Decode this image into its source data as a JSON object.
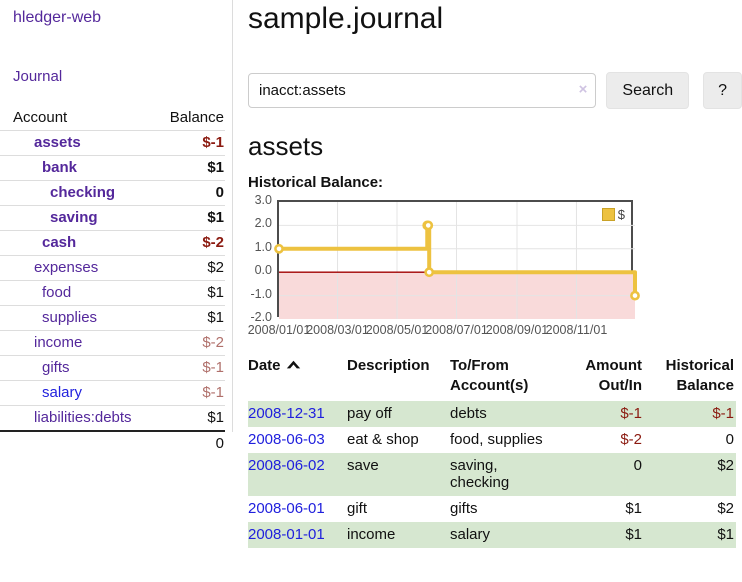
{
  "sidebar": {
    "app_title": "hledger-web",
    "nav": {
      "journal_label": "Journal"
    },
    "accounts_table": {
      "col_account": "Account",
      "col_balance": "Balance",
      "rows": [
        {
          "name": "assets",
          "indent": 1,
          "bold": true,
          "balance": "$-1",
          "balance_style": "neg-strong",
          "link_color": "purple"
        },
        {
          "name": "bank",
          "indent": 2,
          "bold": true,
          "balance": "$1",
          "balance_style": "pos",
          "link_color": "purple"
        },
        {
          "name": "checking",
          "indent": 3,
          "bold": true,
          "balance": "0",
          "balance_style": "pos",
          "link_color": "purple"
        },
        {
          "name": "saving",
          "indent": 3,
          "bold": true,
          "balance": "$1",
          "balance_style": "pos",
          "link_color": "purple"
        },
        {
          "name": "cash",
          "indent": 2,
          "bold": true,
          "balance": "$-2",
          "balance_style": "neg-strong",
          "link_color": "purple"
        },
        {
          "name": "expenses",
          "indent": 1,
          "bold": false,
          "balance": "$2",
          "balance_style": "pos",
          "link_color": "purple"
        },
        {
          "name": "food",
          "indent": 2,
          "bold": false,
          "balance": "$1",
          "balance_style": "pos",
          "link_color": "purple"
        },
        {
          "name": "supplies",
          "indent": 2,
          "bold": false,
          "balance": "$1",
          "balance_style": "pos",
          "link_color": "purple"
        },
        {
          "name": "income",
          "indent": 1,
          "bold": false,
          "balance": "$-2",
          "balance_style": "neg-muted",
          "link_color": "purple"
        },
        {
          "name": "gifts",
          "indent": 2,
          "bold": false,
          "balance": "$-1",
          "balance_style": "neg-muted",
          "link_color": "purple"
        },
        {
          "name": "salary",
          "indent": 2,
          "bold": false,
          "balance": "$-1",
          "balance_style": "neg-muted",
          "link_color": "blue"
        },
        {
          "name": "liabilities:debts",
          "indent": 1,
          "bold": false,
          "balance": "$1",
          "balance_style": "pos",
          "link_color": "purple"
        }
      ],
      "total": "0"
    }
  },
  "main": {
    "title": "sample.journal",
    "search": {
      "value": "inacct:assets",
      "clear_icon": "×",
      "button_label": "Search",
      "help_label": "?"
    },
    "account_heading": "assets",
    "chart_label": "Historical Balance:",
    "register": {
      "headers": {
        "date": "Date",
        "sort_icon": "chevron-up",
        "description": "Description",
        "tofrom_line1": "To/From",
        "tofrom_line2": "Account(s)",
        "amount_line1": "Amount",
        "amount_line2": "Out/In",
        "balance_line1": "Historical",
        "balance_line2": "Balance"
      },
      "rows": [
        {
          "date": "2008-12-31",
          "description": "pay off",
          "accounts": "debts",
          "amount": "$-1",
          "amount_neg": true,
          "balance": "$-1",
          "balance_neg": true,
          "shaded": true
        },
        {
          "date": "2008-06-03",
          "description": "eat & shop",
          "accounts": "food, supplies",
          "amount": "$-2",
          "amount_neg": true,
          "balance": "0",
          "balance_neg": false,
          "shaded": false
        },
        {
          "date": "2008-06-02",
          "description": "save",
          "accounts": "saving, checking",
          "amount": "0",
          "amount_neg": false,
          "balance": "$2",
          "balance_neg": false,
          "shaded": true
        },
        {
          "date": "2008-06-01",
          "description": "gift",
          "accounts": "gifts",
          "amount": "$1",
          "amount_neg": false,
          "balance": "$2",
          "balance_neg": false,
          "shaded": false
        },
        {
          "date": "2008-01-01",
          "description": "income",
          "accounts": "salary",
          "amount": "$1",
          "amount_neg": false,
          "balance": "$1",
          "balance_neg": false,
          "shaded": true
        }
      ]
    }
  },
  "chart_data": {
    "type": "line",
    "title": "Historical Balance:",
    "style": "step",
    "series": [
      {
        "name": "$",
        "color": "#EDC240",
        "points": [
          [
            "2008-01-01",
            1
          ],
          [
            "2008-06-01",
            2
          ],
          [
            "2008-06-02",
            2
          ],
          [
            "2008-06-03",
            0
          ],
          [
            "2008-12-31",
            -1
          ]
        ]
      }
    ],
    "x_range": [
      "2008-01-01",
      "2008-12-31"
    ],
    "x_ticks": [
      "2008/01/01",
      "2008/03/01",
      "2008/05/01",
      "2008/07/01",
      "2008/09/01",
      "2008/11/01"
    ],
    "y_ticks": [
      "3.0",
      "2.0",
      "1.0",
      "0.0",
      "-1.0",
      "-2.0"
    ],
    "ylim": [
      -2,
      3
    ],
    "grid": true,
    "negative_region_color": "#f9dada",
    "zero_line_color": "#a00000",
    "grid_color": "#e4e4e4",
    "legend": {
      "label": "$",
      "position": "top-right"
    }
  }
}
